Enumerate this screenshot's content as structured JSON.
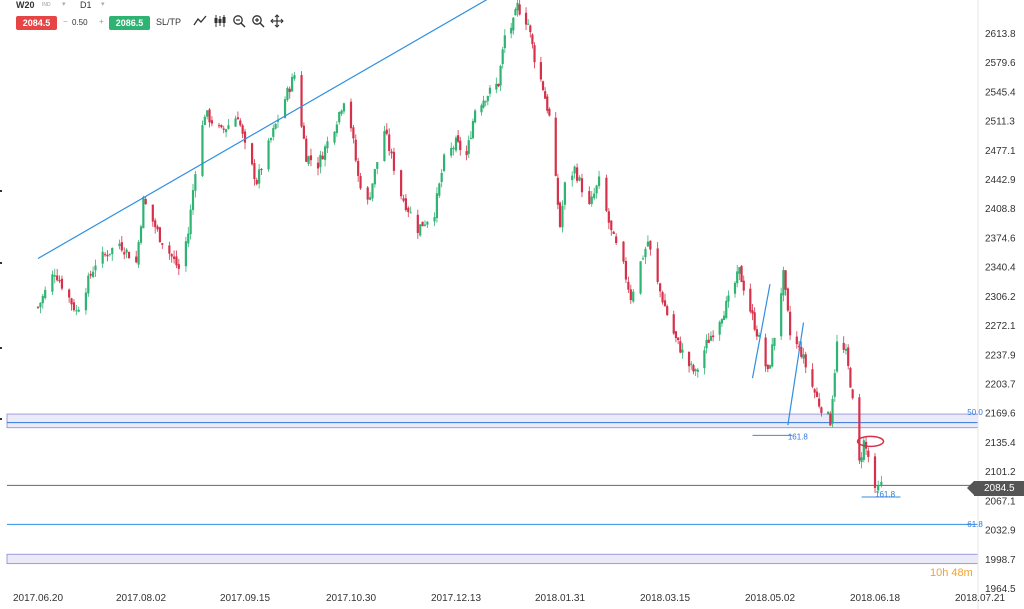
{
  "instrument": {
    "symbol": "W20",
    "symbol_sub": "IND",
    "timeframe": "D1"
  },
  "trade": {
    "sell_price": "2084.5",
    "spread": "0.50",
    "buy_price": "2086.5",
    "sltp_label": "SL/TP",
    "minus": "−",
    "plus": "+"
  },
  "toolbar_icons": [
    "drawing-line-icon",
    "candles-icon",
    "zoom-out-icon",
    "zoom-in-icon",
    "crosshair-icon"
  ],
  "countdown": {
    "hours": "10h",
    "minutes": "48m"
  },
  "current_price": "2084.5",
  "colors": {
    "up": "#2eb372",
    "down": "#d6314a",
    "trendline": "#2f8fe0",
    "zone": "#8a8ad6",
    "sell": "#e64545",
    "buy": "#2eb372"
  },
  "chart_data": {
    "type": "candlestick",
    "y_axis_labels": [
      "2613.8",
      "2579.6",
      "2545.4",
      "2511.3",
      "2477.1",
      "2442.9",
      "2408.8",
      "2374.6",
      "2340.4",
      "2306.2",
      "2272.1",
      "2237.9",
      "2203.7",
      "2169.6",
      "2135.4",
      "2101.2",
      "2067.1",
      "2032.9",
      "1998.7",
      "1964.5"
    ],
    "y_axis_values": [
      2613.8,
      2579.6,
      2545.4,
      2511.3,
      2477.1,
      2442.9,
      2408.8,
      2374.6,
      2340.4,
      2306.2,
      2272.1,
      2237.9,
      2203.7,
      2169.6,
      2135.4,
      2101.2,
      2067.1,
      2032.9,
      1998.7,
      1964.5
    ],
    "x_axis_labels": [
      "2017.06.20",
      "2017.08.02",
      "2017.09.15",
      "2017.10.30",
      "2017.12.13",
      "2018.01.31",
      "2018.03.15",
      "2018.05.02",
      "2018.06.18",
      "2018.07.21"
    ],
    "x_axis_dates": [
      "2017-06-20",
      "2017-08-02",
      "2017-09-15",
      "2017-10-30",
      "2017-12-13",
      "2018-01-31",
      "2018-03-15",
      "2018-05-02",
      "2018-06-18",
      "2018-07-21"
    ],
    "fib_labels": [
      {
        "text": "50.0",
        "date": "2018-07-17",
        "price": 2167
      },
      {
        "text": "161.8",
        "date": "2018-05-10",
        "price": 2138
      },
      {
        "text": "161.8",
        "date": "2018-06-18",
        "price": 2071
      },
      {
        "text": "61.8",
        "date": "2018-07-17",
        "price": 2036
      }
    ],
    "zones": [
      {
        "from": 2152,
        "to": 2168,
        "color": "#8a8ad6"
      },
      {
        "from": 1993,
        "to": 2004,
        "color": "#8a8ad6"
      }
    ],
    "lines": [
      {
        "name": "zone-midline",
        "price": 2158,
        "color": "#3377dd"
      },
      {
        "name": "fib-61.8-line",
        "price": 2039,
        "color": "#2f8fe0"
      },
      {
        "name": "current-price-line",
        "price": 2084.5,
        "color": "#666666"
      }
    ],
    "trendlines": [
      {
        "from": [
          "2017-06-20",
          2350
        ],
        "to": [
          "2018-01-05",
          2665
        ],
        "color": "#2f8fe0"
      },
      {
        "from": [
          "2018-04-24",
          2210
        ],
        "to": [
          "2018-05-02",
          2320
        ],
        "color": "#2f8fe0"
      },
      {
        "from": [
          "2018-05-10",
          2155
        ],
        "to": [
          "2018-05-17",
          2275
        ],
        "color": "#2f8fe0"
      }
    ],
    "short_lines": [
      {
        "from": [
          "2018-04-24",
          2143
        ],
        "to": [
          "2018-05-12",
          2143
        ],
        "color": "#2f8fe0"
      },
      {
        "from": [
          "2018-06-12",
          2071
        ],
        "to": [
          "2018-06-26",
          2071
        ],
        "color": "#2f8fe0"
      }
    ],
    "ellipse": {
      "date": "2018-06-16",
      "price": 2136,
      "color": "#d6314a"
    },
    "series_anchors": [
      [
        "2017-06-20",
        2293
      ],
      [
        "2017-06-27",
        2335
      ],
      [
        "2017-07-06",
        2288
      ],
      [
        "2017-07-14",
        2345
      ],
      [
        "2017-07-24",
        2368
      ],
      [
        "2017-07-31",
        2345
      ],
      [
        "2017-08-03",
        2418
      ],
      [
        "2017-08-10",
        2375
      ],
      [
        "2017-08-18",
        2338
      ],
      [
        "2017-08-22",
        2380
      ],
      [
        "2017-08-25",
        2455
      ],
      [
        "2017-08-29",
        2520
      ],
      [
        "2017-09-05",
        2498
      ],
      [
        "2017-09-12",
        2518
      ],
      [
        "2017-09-15",
        2480
      ],
      [
        "2017-09-20",
        2440
      ],
      [
        "2017-09-26",
        2490
      ],
      [
        "2017-10-01",
        2530
      ],
      [
        "2017-10-06",
        2565
      ],
      [
        "2017-10-11",
        2470
      ],
      [
        "2017-10-16",
        2460
      ],
      [
        "2017-10-23",
        2505
      ],
      [
        "2017-10-28",
        2545
      ],
      [
        "2017-11-02",
        2445
      ],
      [
        "2017-11-06",
        2415
      ],
      [
        "2017-11-13",
        2500
      ],
      [
        "2017-11-20",
        2425
      ],
      [
        "2017-11-27",
        2385
      ],
      [
        "2017-12-04",
        2405
      ],
      [
        "2017-12-08",
        2465
      ],
      [
        "2017-12-13",
        2485
      ],
      [
        "2017-12-18",
        2470
      ],
      [
        "2017-12-22",
        2525
      ],
      [
        "2017-12-27",
        2540
      ],
      [
        "2018-01-02",
        2555
      ],
      [
        "2018-01-05",
        2610
      ],
      [
        "2018-01-09",
        2625
      ],
      [
        "2018-01-11",
        2645
      ],
      [
        "2018-01-16",
        2625
      ],
      [
        "2018-01-19",
        2585
      ],
      [
        "2018-01-23",
        2550
      ],
      [
        "2018-01-26",
        2515
      ],
      [
        "2018-01-29",
        2440
      ],
      [
        "2018-01-31",
        2388
      ],
      [
        "2018-02-02",
        2435
      ],
      [
        "2018-02-06",
        2455
      ],
      [
        "2018-02-12",
        2410
      ],
      [
        "2018-02-16",
        2440
      ],
      [
        "2018-02-21",
        2380
      ],
      [
        "2018-02-26",
        2340
      ],
      [
        "2018-03-01",
        2305
      ],
      [
        "2018-03-05",
        2345
      ],
      [
        "2018-03-08",
        2370
      ],
      [
        "2018-03-12",
        2320
      ],
      [
        "2018-03-16",
        2285
      ],
      [
        "2018-03-20",
        2255
      ],
      [
        "2018-03-26",
        2225
      ],
      [
        "2018-03-29",
        2215
      ],
      [
        "2018-04-03",
        2250
      ],
      [
        "2018-04-09",
        2280
      ],
      [
        "2018-04-13",
        2300
      ],
      [
        "2018-04-18",
        2335
      ],
      [
        "2018-04-23",
        2290
      ],
      [
        "2018-04-27",
        2255
      ],
      [
        "2018-05-01",
        2215
      ],
      [
        "2018-05-04",
        2260
      ],
      [
        "2018-05-08",
        2330
      ],
      [
        "2018-05-11",
        2260
      ],
      [
        "2018-05-16",
        2240
      ],
      [
        "2018-05-21",
        2200
      ],
      [
        "2018-05-24",
        2180
      ],
      [
        "2018-05-29",
        2160
      ],
      [
        "2018-06-01",
        2250
      ],
      [
        "2018-06-05",
        2238
      ],
      [
        "2018-06-07",
        2205
      ],
      [
        "2018-06-11",
        2110
      ],
      [
        "2018-06-13",
        2135
      ],
      [
        "2018-06-15",
        2118
      ],
      [
        "2018-06-18",
        2075
      ],
      [
        "2018-06-20",
        2084.5
      ]
    ]
  }
}
